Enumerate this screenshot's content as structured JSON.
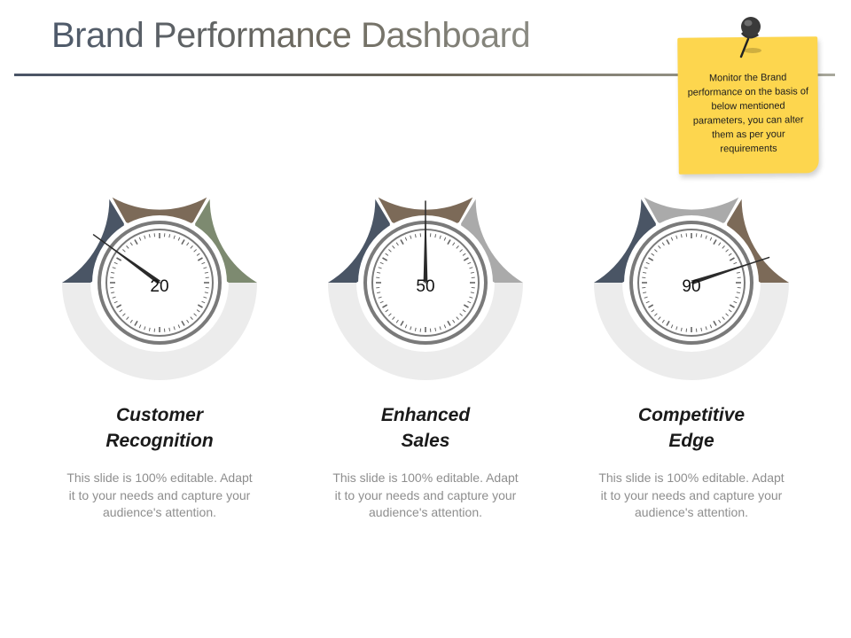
{
  "title": "Brand Performance Dashboard",
  "note": {
    "text": "Monitor the Brand performance  on the basis of below mentioned parameters, you can alter them as per your requirements"
  },
  "gauges": [
    {
      "value": "20",
      "needle_percent": 20,
      "heading_line1": "Customer",
      "heading_line2": "Recognition",
      "description": "This slide is 100% editable. Adapt it to your needs and capture your audience's attention.",
      "segment_colors": [
        "#4a5565",
        "#7c6a58",
        "#7d8a70"
      ]
    },
    {
      "value": "50",
      "needle_percent": 50,
      "heading_line1": "Enhanced",
      "heading_line2": "Sales",
      "description": "This slide is 100% editable. Adapt it to your needs and capture your audience's attention.",
      "segment_colors": [
        "#4a5565",
        "#7c6a58",
        "#aaaaaa"
      ]
    },
    {
      "value": "90",
      "needle_percent": 90,
      "heading_line1": "Competitive",
      "heading_line2": "Edge",
      "description": "This slide is 100% editable. Adapt it to your needs and capture your audience's attention.",
      "segment_colors": [
        "#4a5565",
        "#aaaaaa",
        "#7c6a58"
      ]
    }
  ],
  "colors": {
    "lower_ring": "#ececec",
    "dial_ring": "#7a7a7a",
    "ticks": "#666666",
    "needle": "#2b2b2b",
    "note": "#fdd64e"
  }
}
